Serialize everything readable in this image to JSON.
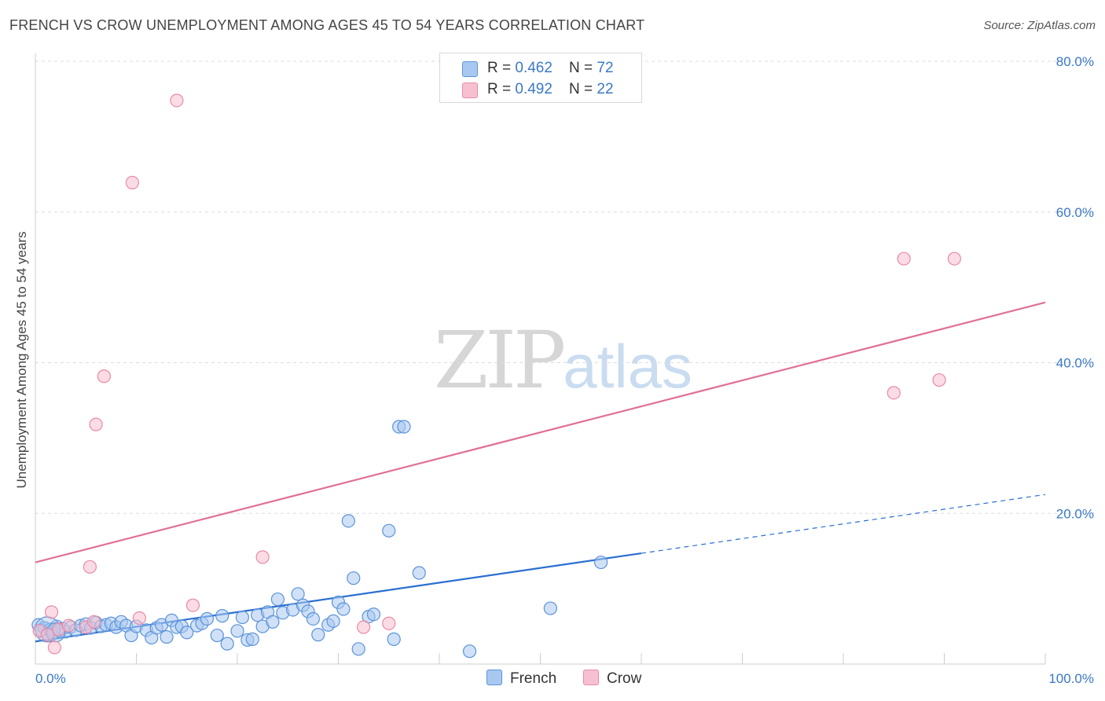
{
  "title": "FRENCH VS CROW UNEMPLOYMENT AMONG AGES 45 TO 54 YEARS CORRELATION CHART",
  "source": "Source: ZipAtlas.com",
  "watermark": {
    "zip": "ZIP",
    "atlas": "atlas"
  },
  "legend": {
    "french": {
      "r_label": "R = ",
      "r_value": "0.462",
      "n_label": "N = ",
      "n_value": "72"
    },
    "crow": {
      "r_label": "R = ",
      "r_value": "0.492",
      "n_label": "N = ",
      "n_value": "22"
    }
  },
  "colors": {
    "french_fill": "#a9c8f0",
    "french_stroke": "#5b93d9",
    "french_line": "#2a6fd1",
    "crow_fill": "#f7c0d0",
    "crow_stroke": "#e88aa6",
    "crow_line": "#e07098",
    "tick_text": "#3a78c8",
    "grid": "#dcdcdc"
  },
  "chart_data": {
    "type": "scatter",
    "title": "FRENCH VS CROW UNEMPLOYMENT AMONG AGES 45 TO 54 YEARS CORRELATION CHART",
    "xlabel": "",
    "ylabel": "Unemployment Among Ages 45 to 54 years",
    "xlim": [
      0,
      100
    ],
    "ylim": [
      0,
      80
    ],
    "x_tick_labels": [
      "0.0%",
      "100.0%"
    ],
    "y_ticks": [
      20,
      40,
      60,
      80
    ],
    "y_tick_labels": [
      "20.0%",
      "40.0%",
      "60.0%",
      "80.0%"
    ],
    "legend_position": "top-center",
    "series": [
      {
        "name": "French",
        "points": [
          [
            0.3,
            5.2
          ],
          [
            0.6,
            4.5
          ],
          [
            0.9,
            4.8
          ],
          [
            1.2,
            4.0
          ],
          [
            1.5,
            4.6
          ],
          [
            1.8,
            4.2
          ],
          [
            2.1,
            5.0
          ],
          [
            2.4,
            4.4
          ],
          [
            2.7,
            4.7
          ],
          [
            3.0,
            4.3
          ],
          [
            3.5,
            4.9
          ],
          [
            4.0,
            4.5
          ],
          [
            4.5,
            5.1
          ],
          [
            5.0,
            5.3
          ],
          [
            5.5,
            4.8
          ],
          [
            6.0,
            5.5
          ],
          [
            6.5,
            5.0
          ],
          [
            7.0,
            5.2
          ],
          [
            7.5,
            5.4
          ],
          [
            8.0,
            4.9
          ],
          [
            8.5,
            5.6
          ],
          [
            9.0,
            5.1
          ],
          [
            9.5,
            3.8
          ],
          [
            10.0,
            5.0
          ],
          [
            11.0,
            4.5
          ],
          [
            11.5,
            3.5
          ],
          [
            12.0,
            4.8
          ],
          [
            12.5,
            5.2
          ],
          [
            13.0,
            3.6
          ],
          [
            13.5,
            5.8
          ],
          [
            14.0,
            4.9
          ],
          [
            14.5,
            5.0
          ],
          [
            15.0,
            4.2
          ],
          [
            16.0,
            5.1
          ],
          [
            16.5,
            5.4
          ],
          [
            17.0,
            6.0
          ],
          [
            18.0,
            3.8
          ],
          [
            18.5,
            6.4
          ],
          [
            19.0,
            2.7
          ],
          [
            20.0,
            4.4
          ],
          [
            20.5,
            6.2
          ],
          [
            21.0,
            3.2
          ],
          [
            21.5,
            3.3
          ],
          [
            22.0,
            6.5
          ],
          [
            22.5,
            5.0
          ],
          [
            23.0,
            6.9
          ],
          [
            23.5,
            5.6
          ],
          [
            24.0,
            8.6
          ],
          [
            24.5,
            6.8
          ],
          [
            25.5,
            7.2
          ],
          [
            26.0,
            9.3
          ],
          [
            26.5,
            7.8
          ],
          [
            27.0,
            7.0
          ],
          [
            27.5,
            6.0
          ],
          [
            28.0,
            3.9
          ],
          [
            29.0,
            5.2
          ],
          [
            29.5,
            5.7
          ],
          [
            30.0,
            8.2
          ],
          [
            30.5,
            7.3
          ],
          [
            31.0,
            19.0
          ],
          [
            31.5,
            11.4
          ],
          [
            32.0,
            2.0
          ],
          [
            33.0,
            6.3
          ],
          [
            33.5,
            6.6
          ],
          [
            35.0,
            17.7
          ],
          [
            35.5,
            3.3
          ],
          [
            36.0,
            31.5
          ],
          [
            36.5,
            31.5
          ],
          [
            38.0,
            12.1
          ],
          [
            43.0,
            1.7
          ],
          [
            51.0,
            7.4
          ],
          [
            56.0,
            13.5
          ]
        ]
      },
      {
        "name": "Crow",
        "points": [
          [
            0.4,
            4.4
          ],
          [
            1.2,
            3.9
          ],
          [
            1.6,
            6.9
          ],
          [
            1.9,
            2.2
          ],
          [
            2.3,
            4.6
          ],
          [
            3.3,
            5.1
          ],
          [
            5.0,
            4.9
          ],
          [
            5.4,
            12.9
          ],
          [
            5.8,
            5.6
          ],
          [
            6.0,
            31.8
          ],
          [
            6.8,
            38.2
          ],
          [
            9.6,
            63.9
          ],
          [
            10.3,
            6.1
          ],
          [
            14.0,
            74.8
          ],
          [
            15.6,
            7.8
          ],
          [
            22.5,
            14.2
          ],
          [
            32.5,
            4.9
          ],
          [
            35.0,
            5.4
          ],
          [
            85.0,
            36.0
          ],
          [
            86.0,
            53.8
          ],
          [
            89.5,
            37.7
          ],
          [
            91.0,
            53.8
          ]
        ]
      }
    ],
    "trend_lines": [
      {
        "name": "French",
        "from": [
          0,
          3.0
        ],
        "to": [
          60,
          14.7
        ],
        "dashed_to": [
          100,
          22.5
        ]
      },
      {
        "name": "Crow",
        "from": [
          0,
          13.5
        ],
        "to": [
          100,
          48.0
        ]
      }
    ]
  }
}
